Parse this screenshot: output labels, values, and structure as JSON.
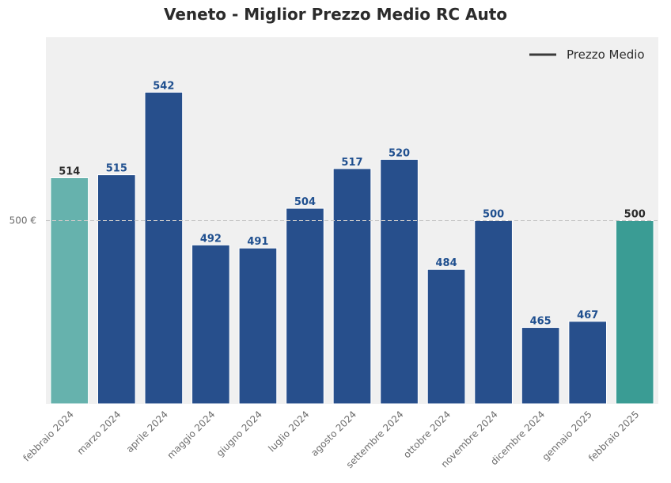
{
  "chart_data": {
    "type": "bar",
    "title": "Veneto - Miglior Prezzo Medio RC Auto",
    "xlabel": "",
    "ylabel": "",
    "categories": [
      "febbraio 2024",
      "marzo 2024",
      "aprile 2024",
      "maggio 2024",
      "giugno 2024",
      "luglio 2024",
      "agosto 2024",
      "settembre 2024",
      "ottobre 2024",
      "novembre 2024",
      "dicembre 2024",
      "gennaio 2025",
      "febbraio 2025"
    ],
    "values": [
      514,
      515,
      542,
      492,
      491,
      504,
      517,
      520,
      484,
      500,
      465,
      467,
      500
    ],
    "value_labels": [
      "514",
      "515",
      "542",
      "492",
      "491",
      "504",
      "517",
      "520",
      "484",
      "500",
      "465",
      "467",
      "500"
    ],
    "ylim": [
      440,
      560
    ],
    "y_ticks": [
      {
        "value": 500,
        "label": "500 €"
      }
    ],
    "reference_line": {
      "value": 500,
      "style": "dashed"
    },
    "legend": {
      "position": "top-right",
      "entries": [
        {
          "label": "Prezzo Medio",
          "style": "line",
          "color": "#3a3a3a"
        }
      ]
    },
    "grid": false,
    "colors": {
      "default_bar": "#274f8c",
      "first_bar": "#66b2ad",
      "last_bar": "#3a9c94",
      "default_label": "#1f4f8f",
      "end_label": "#2b2b2b",
      "plot_bg": "#f0f0f0"
    }
  }
}
